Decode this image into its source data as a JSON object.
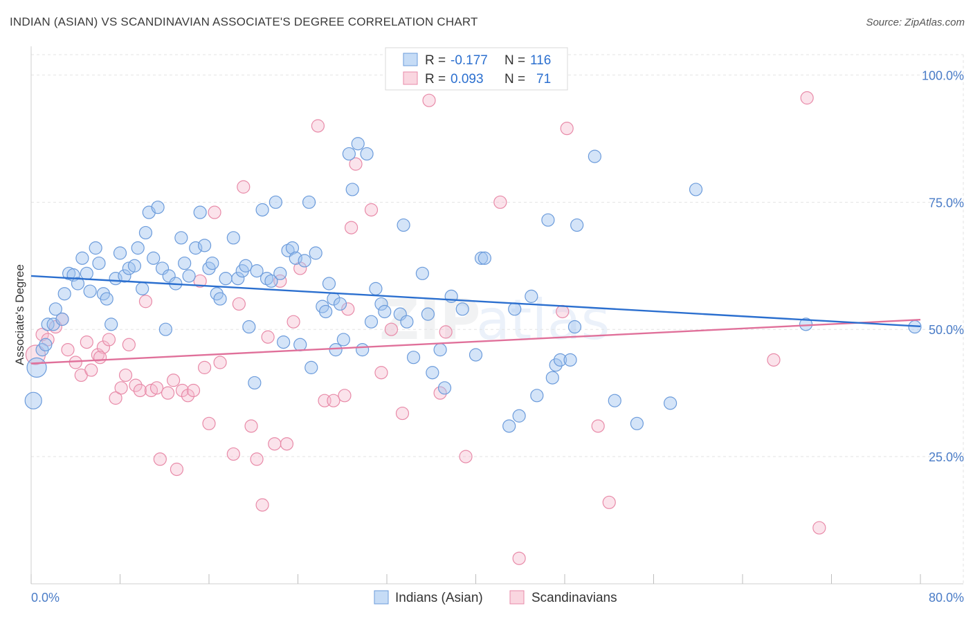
{
  "title": "INDIAN (ASIAN) VS SCANDINAVIAN ASSOCIATE'S DEGREE CORRELATION CHART",
  "source": "Source: ZipAtlas.com",
  "watermark": "ZIPatlas",
  "colors": {
    "series1": "#6b9bdb",
    "series1_fill": "rgba(160,196,240,0.45)",
    "series1_line": "#2b6fcf",
    "series2": "#e88aa8",
    "series2_fill": "rgba(246,186,204,0.4)",
    "series2_line": "#e0709a",
    "accent_text": "#2b6fcf"
  },
  "legend": {
    "row1": {
      "r_label": "R =",
      "r_value": "-0.177",
      "n_label": "N =",
      "n_value": "116"
    },
    "row2": {
      "r_label": "R =",
      "r_value": "0.093",
      "n_label": "N =",
      "n_value": "71"
    }
  },
  "chart_data": {
    "type": "scatter",
    "title": "INDIAN (ASIAN) VS SCANDINAVIAN ASSOCIATE'S DEGREE CORRELATION CHART",
    "xlabel": "",
    "ylabel": "Associate's Degree",
    "xlim": [
      0,
      80
    ],
    "ylim": [
      0,
      104
    ],
    "x_tick_labels": [
      "0.0%",
      "80.0%"
    ],
    "y_tick_labels": [
      "100.0%",
      "75.0%",
      "50.0%",
      "25.0%"
    ],
    "y_ticks": [
      100,
      75,
      50,
      25
    ],
    "grid": true,
    "legend_position": "top-center",
    "series": [
      {
        "name": "Indians (Asian)",
        "color": "#6b9bdb",
        "trend": {
          "x": [
            0,
            80
          ],
          "y": [
            60.5,
            50.6
          ]
        },
        "points": [
          [
            0.2,
            36
          ],
          [
            0.5,
            42.5
          ],
          [
            1.0,
            46
          ],
          [
            1.5,
            51
          ],
          [
            2.0,
            51
          ],
          [
            2.2,
            54
          ],
          [
            2.8,
            52
          ],
          [
            3.0,
            57
          ],
          [
            3.4,
            61
          ],
          [
            3.8,
            60.7
          ],
          [
            4.2,
            59
          ],
          [
            4.6,
            64
          ],
          [
            5.0,
            61
          ],
          [
            5.3,
            57.5
          ],
          [
            5.8,
            66
          ],
          [
            6.1,
            63
          ],
          [
            6.5,
            57
          ],
          [
            6.8,
            56
          ],
          [
            7.2,
            51
          ],
          [
            7.6,
            60
          ],
          [
            8.0,
            65
          ],
          [
            8.4,
            60.5
          ],
          [
            8.8,
            62
          ],
          [
            9.3,
            62.5
          ],
          [
            9.6,
            66
          ],
          [
            10.0,
            58
          ],
          [
            10.3,
            69
          ],
          [
            10.6,
            73
          ],
          [
            11.0,
            64
          ],
          [
            11.4,
            74
          ],
          [
            11.8,
            62
          ],
          [
            12.1,
            50
          ],
          [
            12.4,
            60.5
          ],
          [
            13.0,
            59
          ],
          [
            13.5,
            68
          ],
          [
            13.8,
            63
          ],
          [
            14.2,
            60.5
          ],
          [
            14.8,
            66
          ],
          [
            15.2,
            73
          ],
          [
            15.6,
            66.5
          ],
          [
            16.0,
            62
          ],
          [
            16.3,
            63
          ],
          [
            16.7,
            57
          ],
          [
            17.0,
            56
          ],
          [
            17.5,
            60
          ],
          [
            18.2,
            68
          ],
          [
            18.6,
            60
          ],
          [
            19.0,
            61.5
          ],
          [
            19.3,
            62.5
          ],
          [
            19.6,
            50.5
          ],
          [
            20.1,
            39.5
          ],
          [
            20.3,
            61.5
          ],
          [
            20.8,
            73.5
          ],
          [
            21.2,
            60
          ],
          [
            21.6,
            59.5
          ],
          [
            22.0,
            75
          ],
          [
            22.4,
            61
          ],
          [
            22.7,
            47.5
          ],
          [
            23.1,
            65.5
          ],
          [
            23.5,
            66
          ],
          [
            23.8,
            64
          ],
          [
            24.2,
            47
          ],
          [
            24.6,
            63.5
          ],
          [
            25.0,
            75
          ],
          [
            25.2,
            42.5
          ],
          [
            25.6,
            65
          ],
          [
            26.2,
            54.5
          ],
          [
            26.5,
            53.5
          ],
          [
            26.8,
            59
          ],
          [
            27.2,
            56
          ],
          [
            27.4,
            46
          ],
          [
            27.8,
            55
          ],
          [
            28.1,
            48
          ],
          [
            28.6,
            84.5
          ],
          [
            28.9,
            77.5
          ],
          [
            29.4,
            86.5
          ],
          [
            29.8,
            46
          ],
          [
            30.2,
            84.5
          ],
          [
            30.6,
            51.5
          ],
          [
            31.0,
            58
          ],
          [
            31.5,
            55
          ],
          [
            31.8,
            53.5
          ],
          [
            33.2,
            53
          ],
          [
            33.5,
            70.5
          ],
          [
            33.8,
            51.5
          ],
          [
            34.4,
            44.5
          ],
          [
            35.2,
            61
          ],
          [
            35.7,
            53
          ],
          [
            36.1,
            41.5
          ],
          [
            36.8,
            46
          ],
          [
            37.2,
            38.5
          ],
          [
            37.8,
            56.5
          ],
          [
            38.8,
            54
          ],
          [
            40.0,
            45
          ],
          [
            40.5,
            64
          ],
          [
            40.8,
            64
          ],
          [
            43.0,
            31
          ],
          [
            43.5,
            54
          ],
          [
            43.9,
            33
          ],
          [
            45.0,
            56.5
          ],
          [
            45.5,
            37
          ],
          [
            46.5,
            71.5
          ],
          [
            46.9,
            40.5
          ],
          [
            47.2,
            43
          ],
          [
            47.6,
            44
          ],
          [
            48.5,
            44
          ],
          [
            48.9,
            50.5
          ],
          [
            49.1,
            70.5
          ],
          [
            50.7,
            84
          ],
          [
            52.5,
            36
          ],
          [
            54.5,
            31.5
          ],
          [
            57.5,
            35.5
          ],
          [
            59.8,
            77.5
          ],
          [
            69.7,
            51
          ],
          [
            79.5,
            50.5
          ],
          [
            1.3,
            47
          ]
        ]
      },
      {
        "name": "Scandinavians",
        "color": "#e88aa8",
        "trend": {
          "x": [
            0,
            80
          ],
          "y": [
            43.3,
            51.9
          ]
        },
        "points": [
          [
            0.4,
            45
          ],
          [
            1.0,
            49
          ],
          [
            1.5,
            48
          ],
          [
            2.2,
            50.5
          ],
          [
            2.8,
            52
          ],
          [
            3.3,
            46
          ],
          [
            4.0,
            43.5
          ],
          [
            4.5,
            41
          ],
          [
            5.0,
            47.5
          ],
          [
            5.4,
            42
          ],
          [
            6.0,
            45
          ],
          [
            6.5,
            46.5
          ],
          [
            7.0,
            48
          ],
          [
            7.6,
            36.5
          ],
          [
            8.1,
            38.5
          ],
          [
            8.5,
            41
          ],
          [
            8.8,
            47
          ],
          [
            9.4,
            39
          ],
          [
            9.8,
            38
          ],
          [
            10.3,
            55.5
          ],
          [
            10.8,
            38
          ],
          [
            11.3,
            38.5
          ],
          [
            11.6,
            24.5
          ],
          [
            12.3,
            37.5
          ],
          [
            12.8,
            40
          ],
          [
            13.1,
            22.5
          ],
          [
            13.6,
            38
          ],
          [
            14.1,
            37
          ],
          [
            14.6,
            38
          ],
          [
            15.2,
            59.5
          ],
          [
            15.6,
            42.5
          ],
          [
            16.0,
            31.5
          ],
          [
            16.5,
            73
          ],
          [
            17.0,
            43.5
          ],
          [
            18.2,
            25.5
          ],
          [
            18.7,
            55
          ],
          [
            19.1,
            78
          ],
          [
            19.8,
            31
          ],
          [
            20.3,
            24.5
          ],
          [
            20.8,
            15.5
          ],
          [
            21.3,
            48.5
          ],
          [
            21.9,
            27.5
          ],
          [
            22.4,
            59.5
          ],
          [
            23.0,
            27.5
          ],
          [
            23.6,
            51.5
          ],
          [
            24.2,
            62
          ],
          [
            25.8,
            90
          ],
          [
            26.4,
            36
          ],
          [
            27.2,
            36
          ],
          [
            28.2,
            37
          ],
          [
            28.5,
            54
          ],
          [
            28.8,
            70
          ],
          [
            29.2,
            82.5
          ],
          [
            30.6,
            73.5
          ],
          [
            31.5,
            41.5
          ],
          [
            32.4,
            50
          ],
          [
            33.4,
            33.5
          ],
          [
            35.8,
            95
          ],
          [
            36.8,
            37.5
          ],
          [
            37.3,
            49.5
          ],
          [
            39.1,
            25
          ],
          [
            42.2,
            75
          ],
          [
            43.9,
            5
          ],
          [
            47.8,
            53.5
          ],
          [
            48.2,
            89.5
          ],
          [
            51.0,
            31
          ],
          [
            52.0,
            16
          ],
          [
            66.8,
            44
          ],
          [
            69.8,
            95.5
          ],
          [
            70.9,
            11
          ],
          [
            6.2,
            44.5
          ]
        ]
      }
    ]
  },
  "bottom_legend": {
    "item1": "Indians (Asian)",
    "item2": "Scandinavians"
  }
}
